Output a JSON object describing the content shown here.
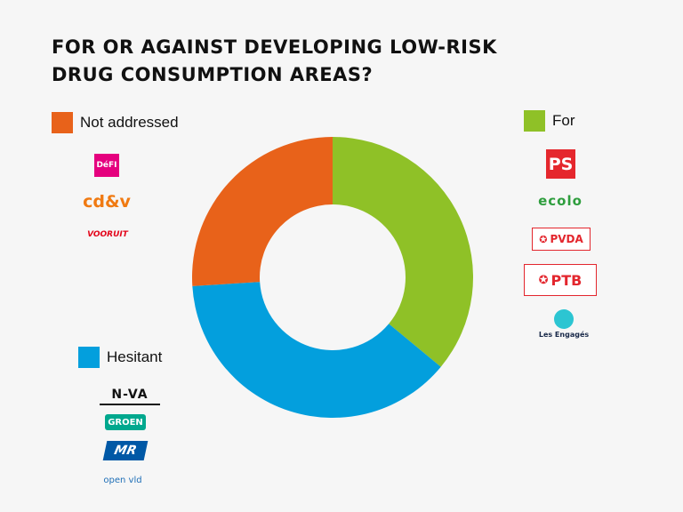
{
  "title": "FOR OR AGAINST DEVELOPING LOW-RISK DRUG CONSUMPTION AREAS?",
  "chart_data": {
    "type": "pie",
    "variant": "donut",
    "categories": [
      "For",
      "Hesitant",
      "Not addressed"
    ],
    "values": [
      36,
      38,
      26
    ],
    "colors": [
      "#8fc127",
      "#039fdd",
      "#e8621a"
    ],
    "legend_placement": "around chart"
  },
  "legend": [
    {
      "label": "Not addressed",
      "color": "#e8621a"
    },
    {
      "label": "For",
      "color": "#8fc127"
    },
    {
      "label": "Hesitant",
      "color": "#039fdd"
    }
  ],
  "logos": {
    "not_addressed": [
      {
        "text": "DéFI",
        "icon": "defi-logo"
      },
      {
        "text": "cd&v",
        "icon": "cdv-logo"
      },
      {
        "text": "VOORUIT",
        "icon": "vooruit-logo"
      }
    ],
    "for": [
      {
        "text": "PS",
        "icon": "ps-logo"
      },
      {
        "text": "ecolo",
        "icon": "ecolo-logo"
      },
      {
        "text": "PVDA",
        "icon": "pvda-logo"
      },
      {
        "text": "PTB",
        "icon": "ptb-logo"
      },
      {
        "text": "Les Engagés",
        "icon": "les-engages-logo"
      }
    ],
    "hesitant": [
      {
        "text": "N-VA",
        "icon": "nva-logo"
      },
      {
        "text": "GROEN",
        "icon": "groen-logo"
      },
      {
        "text": "MR",
        "icon": "mr-logo"
      },
      {
        "text": "open vld",
        "icon": "open-vld-logo"
      }
    ]
  }
}
